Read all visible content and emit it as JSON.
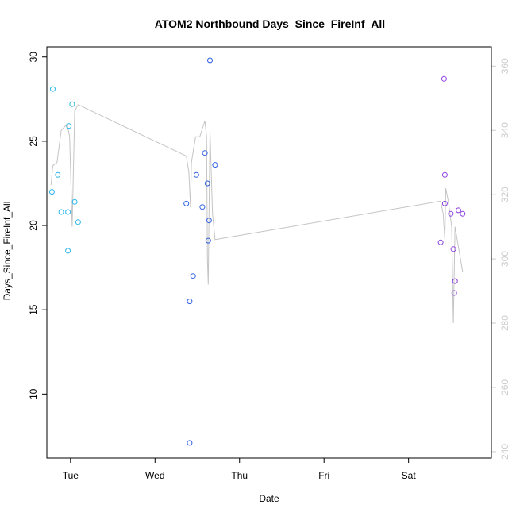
{
  "chart_data": {
    "type": "scatter",
    "title": "ATOM2 Northbound Days_Since_FireInf_All",
    "xlabel": "Date",
    "ylabel": "Days_Since_FireInf_All",
    "x_ticks": [
      "Tue",
      "Wed",
      "Thu",
      "Fri",
      "Sat"
    ],
    "x_tick_days": [
      1,
      2,
      3,
      4,
      5
    ],
    "xlim_days": [
      0.72,
      5.98
    ],
    "ylim": [
      6.2,
      30.6
    ],
    "y_ticks": [
      10,
      15,
      20,
      25,
      30
    ],
    "y2lim": [
      238,
      366
    ],
    "y2_ticks": [
      240,
      260,
      280,
      300,
      320,
      340,
      360
    ],
    "colors": {
      "series_1": "#29b6e8",
      "series_2": "#2f5fe0",
      "series_3": "#8a3fe0",
      "line": "#c4c4c4",
      "axis": "#000000",
      "right_axis": "#cccccc"
    },
    "series": [
      {
        "points": [
          {
            "x": 0.78,
            "y": 22.0
          },
          {
            "x": 0.79,
            "y": 28.1
          },
          {
            "x": 0.85,
            "y": 23.0
          },
          {
            "x": 0.89,
            "y": 20.8
          },
          {
            "x": 0.97,
            "y": 20.8
          },
          {
            "x": 0.97,
            "y": 18.5
          },
          {
            "x": 0.98,
            "y": 25.9
          },
          {
            "x": 1.02,
            "y": 27.2
          },
          {
            "x": 1.05,
            "y": 21.4
          },
          {
            "x": 1.09,
            "y": 20.2
          }
        ]
      },
      {
        "points": [
          {
            "x": 2.37,
            "y": 21.3
          },
          {
            "x": 2.41,
            "y": 15.5
          },
          {
            "x": 2.41,
            "y": 7.1
          },
          {
            "x": 2.45,
            "y": 17.0
          },
          {
            "x": 2.49,
            "y": 23.0
          },
          {
            "x": 2.56,
            "y": 21.1
          },
          {
            "x": 2.59,
            "y": 24.3
          },
          {
            "x": 2.62,
            "y": 22.5
          },
          {
            "x": 2.63,
            "y": 19.1
          },
          {
            "x": 2.64,
            "y": 20.3
          },
          {
            "x": 2.65,
            "y": 29.8
          },
          {
            "x": 2.71,
            "y": 23.6
          }
        ]
      },
      {
        "points": [
          {
            "x": 5.38,
            "y": 19.0
          },
          {
            "x": 5.42,
            "y": 28.7
          },
          {
            "x": 5.43,
            "y": 23.0
          },
          {
            "x": 5.43,
            "y": 21.3
          },
          {
            "x": 5.5,
            "y": 20.7
          },
          {
            "x": 5.53,
            "y": 18.6
          },
          {
            "x": 5.54,
            "y": 16.0
          },
          {
            "x": 5.55,
            "y": 16.7
          },
          {
            "x": 5.59,
            "y": 20.9
          },
          {
            "x": 5.64,
            "y": 20.7
          }
        ]
      }
    ],
    "line_series": {
      "axis": "right",
      "points": [
        {
          "x": 0.77,
          "y": 323
        },
        {
          "x": 0.79,
          "y": 329
        },
        {
          "x": 0.84,
          "y": 330
        },
        {
          "x": 0.89,
          "y": 340
        },
        {
          "x": 0.96,
          "y": 342
        },
        {
          "x": 0.99,
          "y": 338
        },
        {
          "x": 1.02,
          "y": 310
        },
        {
          "x": 1.05,
          "y": 346
        },
        {
          "x": 1.09,
          "y": 348
        },
        {
          "x": 2.37,
          "y": 332
        },
        {
          "x": 2.4,
          "y": 327
        },
        {
          "x": 2.42,
          "y": 316
        },
        {
          "x": 2.43,
          "y": 330
        },
        {
          "x": 2.48,
          "y": 338
        },
        {
          "x": 2.53,
          "y": 338
        },
        {
          "x": 2.59,
          "y": 343
        },
        {
          "x": 2.61,
          "y": 338
        },
        {
          "x": 2.62,
          "y": 300
        },
        {
          "x": 2.63,
          "y": 292
        },
        {
          "x": 2.65,
          "y": 340
        },
        {
          "x": 2.68,
          "y": 314
        },
        {
          "x": 2.71,
          "y": 306
        },
        {
          "x": 5.38,
          "y": 318
        },
        {
          "x": 5.41,
          "y": 314
        },
        {
          "x": 5.43,
          "y": 306
        },
        {
          "x": 5.44,
          "y": 322
        },
        {
          "x": 5.47,
          "y": 318
        },
        {
          "x": 5.51,
          "y": 310
        },
        {
          "x": 5.53,
          "y": 280
        },
        {
          "x": 5.55,
          "y": 310
        },
        {
          "x": 5.64,
          "y": 296
        }
      ]
    }
  }
}
